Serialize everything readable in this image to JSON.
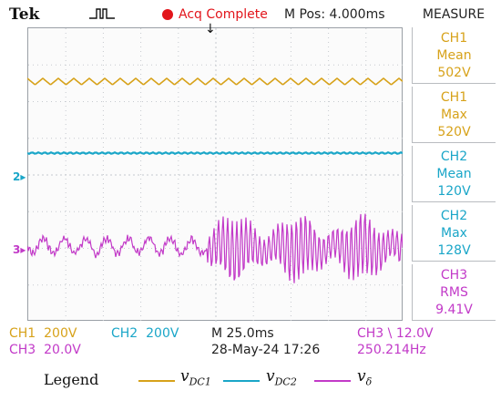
{
  "header": {
    "brand": "Tek",
    "trigger_glyph": "pulse-trigger-icon",
    "acq_status": "Acq Complete",
    "m_pos": "M Pos: 4.000ms",
    "measure_title": "MEASURE"
  },
  "channel_markers": {
    "ch2": "2",
    "ch3": "3"
  },
  "measure": [
    {
      "ch": "CH1",
      "type": "Mean",
      "value": "502V",
      "color": "#d7a21a"
    },
    {
      "ch": "CH1",
      "type": "Max",
      "value": "520V",
      "color": "#d7a21a"
    },
    {
      "ch": "CH2",
      "type": "Mean",
      "value": "120V",
      "color": "#1aa6c8"
    },
    {
      "ch": "CH2",
      "type": "Max",
      "value": "128V",
      "color": "#1aa6c8"
    },
    {
      "ch": "CH3",
      "type": "RMS",
      "value": "9.41V",
      "color": "#c23ac8"
    }
  ],
  "readout": {
    "ch1_label": "CH1",
    "ch1_scale": "200V",
    "ch2_label": "CH2",
    "ch2_scale": "200V",
    "ch3_label": "CH3",
    "ch3_scale": "20.0V",
    "timebase": "M 25.0ms",
    "date_time": "28-May-24 17:26",
    "trigger": "CH3 \\ 12.0V",
    "frequency": "250.214Hz"
  },
  "legend": {
    "title": "Legend",
    "items": [
      {
        "base": "v",
        "sub": "DC1",
        "color": "#d7a21a"
      },
      {
        "base": "v",
        "sub": "DC2",
        "color": "#1aa6c8"
      },
      {
        "base": "v",
        "sub": "δ",
        "color": "#c23ac8"
      }
    ]
  },
  "colors": {
    "ch1": "#d7a21a",
    "ch2": "#1aa6c8",
    "ch3": "#c23ac8",
    "grid": "#c6cacf",
    "acq": "#e2151b"
  }
}
